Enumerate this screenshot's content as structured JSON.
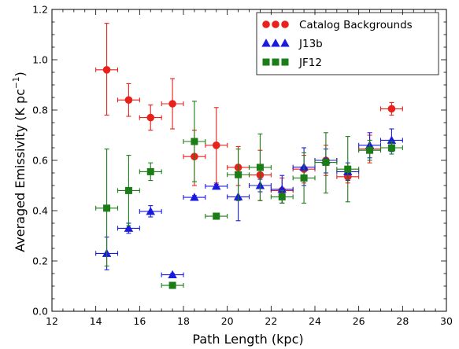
{
  "chart_data": {
    "type": "scatter",
    "xlabel": "Path Length (kpc)",
    "ylabel": "Averaged Emissivity (K pc",
    "ylabel_sup": "−1",
    "ylabel_close": ")",
    "xlim": [
      12,
      30
    ],
    "ylim": [
      0.0,
      1.2
    ],
    "xticks": [
      "12",
      "14",
      "16",
      "18",
      "20",
      "22",
      "24",
      "26",
      "28",
      "30"
    ],
    "yticks": [
      "0.0",
      "0.2",
      "0.4",
      "0.6",
      "0.8",
      "1.0",
      "1.2"
    ],
    "legend_position": "top-right",
    "x_error": 0.5,
    "series": [
      {
        "name": "Catalog Backgrounds",
        "color": "#e8211b",
        "marker": "circle",
        "points": [
          {
            "x": 14.5,
            "y": 0.96,
            "ylo": 0.78,
            "yhi": 1.145
          },
          {
            "x": 15.5,
            "y": 0.84,
            "ylo": 0.775,
            "yhi": 0.905
          },
          {
            "x": 16.5,
            "y": 0.77,
            "ylo": 0.72,
            "yhi": 0.82
          },
          {
            "x": 17.5,
            "y": 0.825,
            "ylo": 0.725,
            "yhi": 0.925
          },
          {
            "x": 18.5,
            "y": 0.615,
            "ylo": 0.5,
            "yhi": 0.72
          },
          {
            "x": 19.5,
            "y": 0.66,
            "ylo": 0.51,
            "yhi": 0.81
          },
          {
            "x": 20.5,
            "y": 0.572,
            "ylo": 0.5,
            "yhi": 0.655
          },
          {
            "x": 21.5,
            "y": 0.542,
            "ylo": 0.44,
            "yhi": 0.64
          },
          {
            "x": 22.5,
            "y": 0.48,
            "ylo": 0.43,
            "yhi": 0.53
          },
          {
            "x": 23.5,
            "y": 0.565,
            "ylo": 0.51,
            "yhi": 0.62
          },
          {
            "x": 24.5,
            "y": 0.6,
            "ylo": 0.54,
            "yhi": 0.66
          },
          {
            "x": 25.5,
            "y": 0.535,
            "ylo": 0.51,
            "yhi": 0.56
          },
          {
            "x": 26.5,
            "y": 0.645,
            "ylo": 0.59,
            "yhi": 0.7
          },
          {
            "x": 27.5,
            "y": 0.805,
            "ylo": 0.78,
            "yhi": 0.83
          }
        ]
      },
      {
        "name": "J13b",
        "color": "#1a1adf",
        "marker": "triangle",
        "points": [
          {
            "x": 14.5,
            "y": 0.23,
            "ylo": 0.165,
            "yhi": 0.295
          },
          {
            "x": 15.5,
            "y": 0.33,
            "ylo": 0.31,
            "yhi": 0.35
          },
          {
            "x": 16.5,
            "y": 0.397,
            "ylo": 0.375,
            "yhi": 0.42
          },
          {
            "x": 17.5,
            "y": 0.145,
            "ylo": 0.14,
            "yhi": 0.15
          },
          {
            "x": 18.5,
            "y": 0.453,
            "ylo": 0.445,
            "yhi": 0.46
          },
          {
            "x": 19.5,
            "y": 0.497,
            "ylo": 0.49,
            "yhi": 0.505
          },
          {
            "x": 20.5,
            "y": 0.455,
            "ylo": 0.36,
            "yhi": 0.55
          },
          {
            "x": 21.5,
            "y": 0.5,
            "ylo": 0.475,
            "yhi": 0.525
          },
          {
            "x": 22.5,
            "y": 0.485,
            "ylo": 0.43,
            "yhi": 0.54
          },
          {
            "x": 23.5,
            "y": 0.573,
            "ylo": 0.5,
            "yhi": 0.65
          },
          {
            "x": 24.5,
            "y": 0.6,
            "ylo": 0.55,
            "yhi": 0.645
          },
          {
            "x": 25.5,
            "y": 0.555,
            "ylo": 0.52,
            "yhi": 0.59
          },
          {
            "x": 26.5,
            "y": 0.66,
            "ylo": 0.61,
            "yhi": 0.71
          },
          {
            "x": 27.5,
            "y": 0.68,
            "ylo": 0.635,
            "yhi": 0.725
          }
        ]
      },
      {
        "name": "JF12",
        "color": "#1b7d16",
        "marker": "square",
        "points": [
          {
            "x": 14.5,
            "y": 0.41,
            "ylo": 0.18,
            "yhi": 0.645
          },
          {
            "x": 15.5,
            "y": 0.48,
            "ylo": 0.34,
            "yhi": 0.62
          },
          {
            "x": 16.5,
            "y": 0.555,
            "ylo": 0.52,
            "yhi": 0.59
          },
          {
            "x": 17.5,
            "y": 0.103,
            "ylo": 0.098,
            "yhi": 0.108
          },
          {
            "x": 18.5,
            "y": 0.675,
            "ylo": 0.515,
            "yhi": 0.835
          },
          {
            "x": 19.5,
            "y": 0.378,
            "ylo": 0.372,
            "yhi": 0.384
          },
          {
            "x": 20.5,
            "y": 0.543,
            "ylo": 0.44,
            "yhi": 0.645
          },
          {
            "x": 21.5,
            "y": 0.572,
            "ylo": 0.44,
            "yhi": 0.705
          },
          {
            "x": 22.5,
            "y": 0.455,
            "ylo": 0.43,
            "yhi": 0.48
          },
          {
            "x": 23.5,
            "y": 0.53,
            "ylo": 0.43,
            "yhi": 0.63
          },
          {
            "x": 24.5,
            "y": 0.592,
            "ylo": 0.47,
            "yhi": 0.71
          },
          {
            "x": 25.5,
            "y": 0.565,
            "ylo": 0.435,
            "yhi": 0.695
          },
          {
            "x": 26.5,
            "y": 0.64,
            "ylo": 0.6,
            "yhi": 0.68
          },
          {
            "x": 27.5,
            "y": 0.65,
            "ylo": 0.625,
            "yhi": 0.675
          }
        ]
      }
    ]
  }
}
